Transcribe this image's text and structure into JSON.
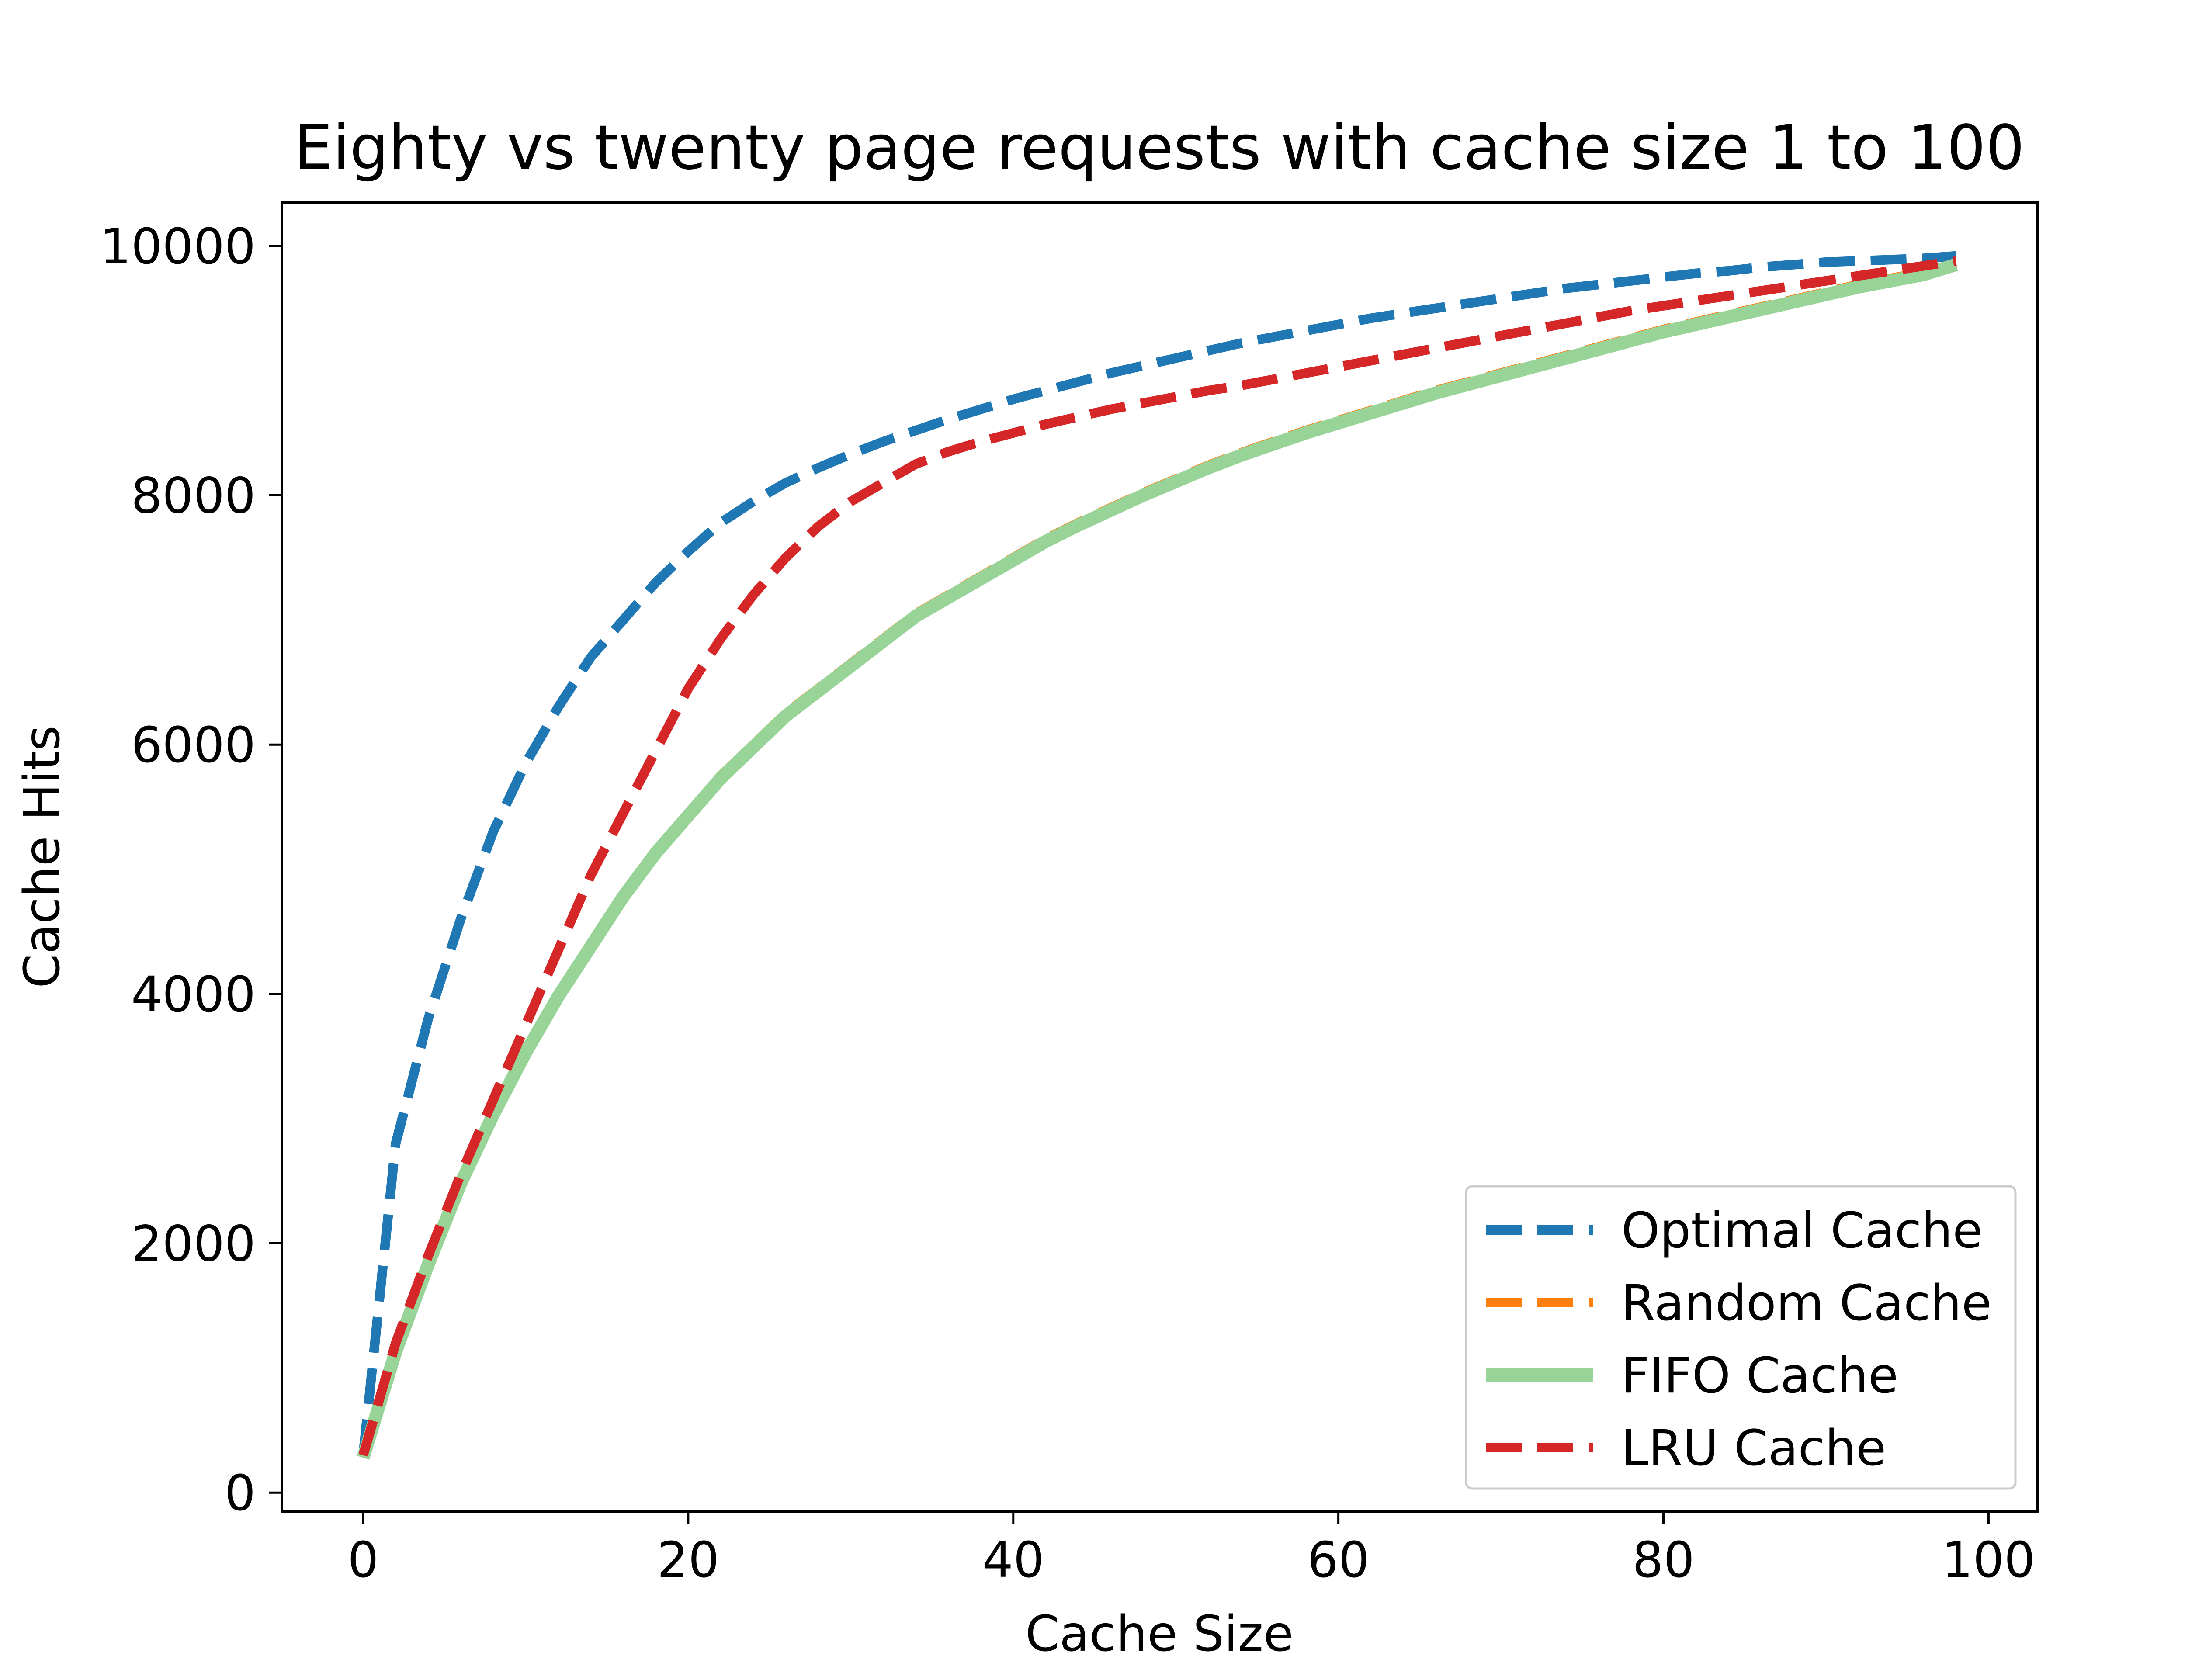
{
  "chart_data": {
    "type": "line",
    "title": "Eighty vs twenty page requests with cache size 1 to 100",
    "xlabel": "Cache Size",
    "ylabel": "Cache Hits",
    "xlim": [
      -5,
      103
    ],
    "ylim": [
      -150,
      10350
    ],
    "xticks": [
      0,
      20,
      40,
      60,
      80,
      100
    ],
    "yticks": [
      0,
      2000,
      4000,
      6000,
      8000,
      10000
    ],
    "grid": false,
    "legend_position": "lower-right",
    "x": [
      0,
      2,
      4,
      6,
      8,
      10,
      12,
      14,
      16,
      18,
      20,
      22,
      24,
      26,
      28,
      30,
      32,
      34,
      36,
      38,
      40,
      42,
      44,
      46,
      48,
      50,
      52,
      54,
      56,
      58,
      60,
      62,
      64,
      66,
      68,
      70,
      72,
      74,
      76,
      78,
      80,
      82,
      84,
      86,
      88,
      90,
      92,
      94,
      96,
      98
    ],
    "series": [
      {
        "name": "Optimal Cache",
        "color": "#1f77b4",
        "style": "dashed",
        "values": [
          300,
          2800,
          3800,
          4600,
          5300,
          5850,
          6300,
          6700,
          7000,
          7300,
          7550,
          7780,
          7950,
          8100,
          8220,
          8330,
          8430,
          8520,
          8610,
          8690,
          8770,
          8840,
          8910,
          8980,
          9040,
          9100,
          9160,
          9220,
          9270,
          9320,
          9370,
          9420,
          9460,
          9500,
          9540,
          9580,
          9620,
          9660,
          9690,
          9720,
          9750,
          9780,
          9800,
          9830,
          9850,
          9870,
          9880,
          9890,
          9900,
          9920
        ]
      },
      {
        "name": "Random Cache",
        "color": "#ff7f0e",
        "style": "dashed",
        "values": [
          300,
          1150,
          1850,
          2500,
          3050,
          3550,
          4000,
          4400,
          4800,
          5150,
          5450,
          5750,
          6000,
          6250,
          6450,
          6650,
          6850,
          7050,
          7200,
          7350,
          7500,
          7650,
          7780,
          7900,
          8020,
          8130,
          8240,
          8340,
          8430,
          8520,
          8600,
          8680,
          8760,
          8840,
          8910,
          8980,
          9050,
          9120,
          9190,
          9260,
          9330,
          9390,
          9450,
          9510,
          9570,
          9630,
          9690,
          9740,
          9790,
          9860
        ]
      },
      {
        "name": "FIFO Cache",
        "color": "#98d497",
        "style": "solid",
        "values": [
          280,
          1130,
          1830,
          2480,
          3030,
          3530,
          3980,
          4380,
          4780,
          5130,
          5430,
          5730,
          5980,
          6230,
          6430,
          6630,
          6830,
          7030,
          7180,
          7330,
          7480,
          7630,
          7760,
          7880,
          8000,
          8110,
          8220,
          8320,
          8410,
          8500,
          8580,
          8660,
          8740,
          8820,
          8890,
          8960,
          9030,
          9100,
          9170,
          9240,
          9310,
          9370,
          9430,
          9490,
          9550,
          9610,
          9670,
          9720,
          9770,
          9850
        ]
      },
      {
        "name": "LRU Cache",
        "color": "#d62728",
        "style": "dashed",
        "values": [
          300,
          1200,
          1900,
          2550,
          3150,
          3750,
          4350,
          4950,
          5450,
          5950,
          6450,
          6850,
          7200,
          7500,
          7750,
          7950,
          8100,
          8250,
          8350,
          8430,
          8500,
          8570,
          8630,
          8690,
          8740,
          8790,
          8840,
          8880,
          8930,
          8980,
          9030,
          9080,
          9130,
          9180,
          9230,
          9280,
          9330,
          9380,
          9430,
          9480,
          9520,
          9560,
          9600,
          9640,
          9680,
          9720,
          9760,
          9800,
          9840,
          9880
        ]
      }
    ]
  }
}
